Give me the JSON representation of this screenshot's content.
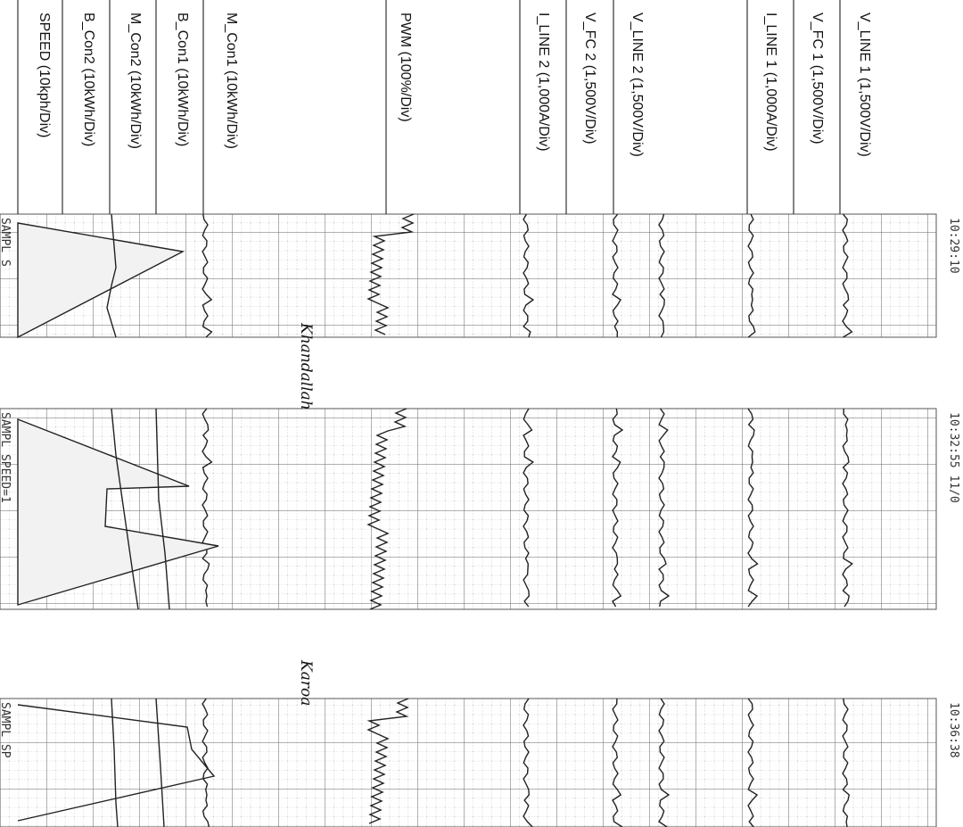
{
  "channels": [
    "V_LINE 1 (1,500V/Div)",
    "V_FC 1 (1,500V/Div)",
    "I_LINE 1 (1,000A/Div)",
    "V_LINE 2 (1,500V/Div)",
    "V_FC 2 (1,500V/Div)",
    "I_LINE 2 (1,000A/Div)",
    "PWM (100%/Div)",
    "M_Con1 (10kWh/Div)",
    "B_Con1 (10kWh/Div)",
    "M_Con2 (10kWh/Div)",
    "B_Con2 (10kWh/Div)",
    "SPEED (10kph/Div)"
  ],
  "panels": [
    {
      "header": "10:29:10",
      "footer": "SAMPL S"
    },
    {
      "header": "10:32:55   11/0",
      "footer": "SAMPL  SPEED=1"
    },
    {
      "header": "10:36:38",
      "footer": "SAMPL  SP"
    }
  ],
  "annotations": [
    "Khandallah",
    "Karoa"
  ]
}
